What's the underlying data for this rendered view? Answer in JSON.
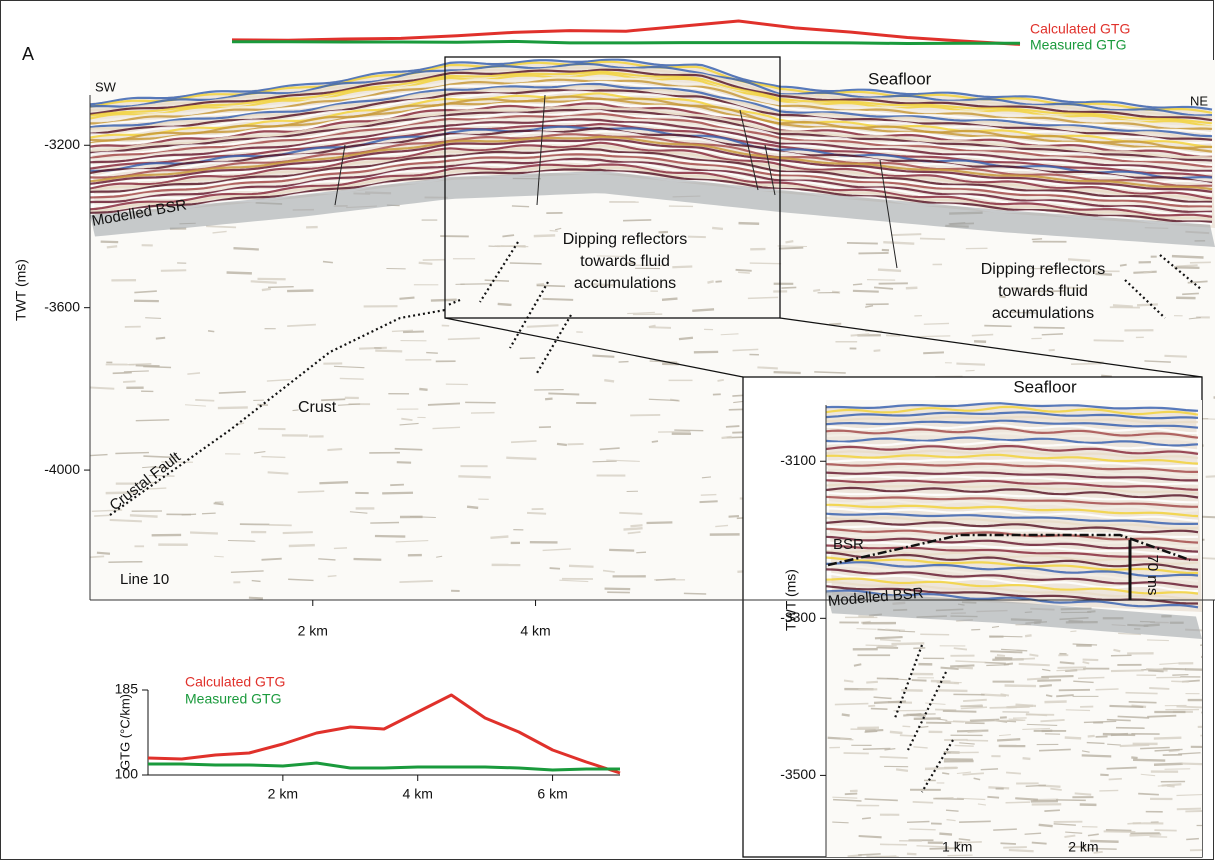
{
  "chart_data": [
    {
      "type": "seismic",
      "y_label": "TWT (ms)",
      "xlim": [
        0,
        10.1
      ],
      "ylim": [
        -2990,
        -4320
      ],
      "xticks": [
        {
          "value": 2,
          "label": "2 km"
        },
        {
          "value": 4,
          "label": "4 km"
        }
      ],
      "yticks": [
        -3200,
        -3600,
        -4000
      ],
      "annotations": [
        "A",
        "SW",
        "NE",
        "Seafloor",
        "Modelled BSR",
        "Dipping reflectors",
        "towards fluid",
        "accumulations",
        "Dipping reflectors",
        "towards fluid",
        "accumulations",
        "Crust",
        "Crustal Fault",
        "Line 10"
      ]
    },
    {
      "type": "seismic",
      "y_label": "TWT (ms)",
      "xlim": [
        -0.04,
        2.94
      ],
      "ylim": [
        -3022,
        -3595
      ],
      "xticks": [
        {
          "value": 1,
          "label": "1 km"
        },
        {
          "value": 2,
          "label": "2 km"
        }
      ],
      "yticks": [
        -3100,
        -3300,
        -3500
      ],
      "annotations": [
        "Seafloor",
        "BSR",
        "70 ms",
        "Modelled BSR"
      ]
    },
    {
      "type": "line",
      "y_label": "GTG (°C/km)",
      "x": [
        0,
        0.5,
        1,
        1.5,
        2,
        2.5,
        3,
        3.5,
        4,
        4.5,
        5,
        5.5,
        6,
        6.5,
        7
      ],
      "xlim": [
        0,
        7
      ],
      "ylim": [
        100,
        185
      ],
      "xticks": [
        {
          "value": 2,
          "label": "2 km"
        },
        {
          "value": 4,
          "label": "4 km"
        },
        {
          "value": 6,
          "label": "6 km"
        }
      ],
      "yticks": [
        100,
        185
      ],
      "series": [
        {
          "name": "Calculated GTG",
          "color": "#e0312b",
          "values": [
            117,
            116,
            120,
            122,
            131,
            142,
            148,
            146,
            163,
            180,
            157,
            143,
            125,
            113,
            102
          ]
        },
        {
          "name": "Measured GTG",
          "color": "#1a9a3c",
          "values": [
            111,
            111,
            110,
            110,
            109,
            112,
            107,
            107,
            108,
            108,
            108,
            107,
            105,
            106,
            106
          ]
        }
      ]
    }
  ]
}
